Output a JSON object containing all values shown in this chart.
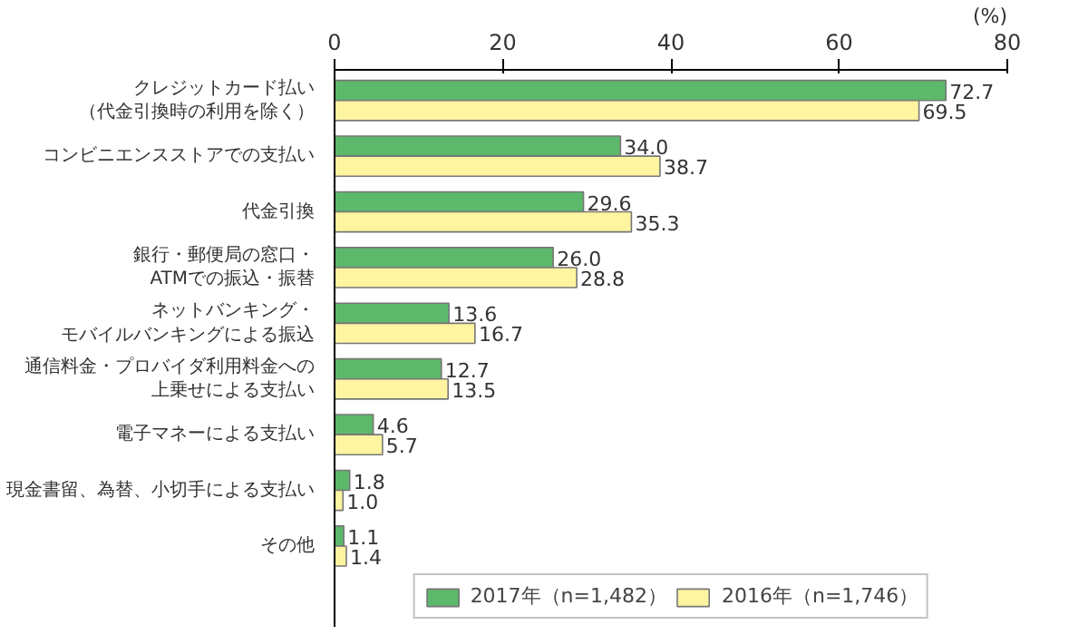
{
  "chart_data": {
    "type": "bar",
    "orientation": "horizontal",
    "xlabel": "(%)",
    "categories": [
      "クレジットカード払い（代金引換時の利用を除く）",
      "コンビニエンスストアでの支払い",
      "代金引換",
      "銀行・郵便局の窓口・ATMでの振込・振替",
      "ネットバンキング・モバイルバンキングによる振込",
      "通信料金・プロバイダ利用料金への上乗せによる支払い",
      "電子マネーによる支払い",
      "現金書留、為替、小切手による支払い",
      "その他"
    ],
    "series": [
      {
        "name": "2017年（n=1,482）",
        "color": "#5cb86a",
        "values": [
          72.7,
          34.0,
          29.6,
          26.0,
          13.6,
          12.7,
          4.6,
          1.8,
          1.1
        ],
        "value_labels": [
          "72.7",
          "34.0",
          "29.6",
          "26.0",
          "13.6",
          "12.7",
          "4.6",
          "1.8",
          "1.1"
        ]
      },
      {
        "name": "2016年（n=1,746）",
        "color": "#fff4a0",
        "values": [
          69.5,
          38.7,
          35.3,
          28.8,
          16.7,
          13.5,
          5.7,
          1.0,
          1.4
        ],
        "value_labels": [
          "69.5",
          "38.7",
          "35.3",
          "28.8",
          "16.7",
          "13.5",
          "5.7",
          "1.0",
          "1.4"
        ]
      }
    ],
    "xlim": [
      0,
      80
    ],
    "xticks": [
      0,
      20,
      40,
      60,
      80
    ],
    "legend": "bottom"
  }
}
